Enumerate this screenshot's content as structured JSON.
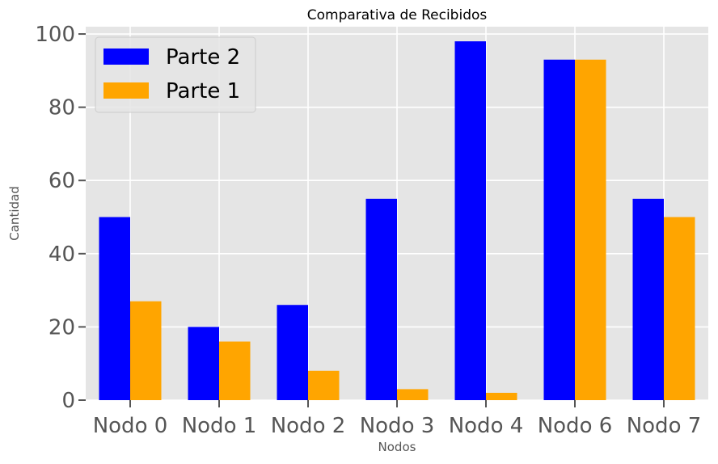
{
  "chart_data": {
    "type": "bar",
    "title": "Comparativa de Recibidos",
    "xlabel": "Nodos",
    "ylabel": "Cantidad",
    "categories": [
      "Nodo 0",
      "Nodo 1",
      "Nodo 2",
      "Nodo 3",
      "Nodo 4",
      "Nodo 6",
      "Nodo 7"
    ],
    "series": [
      {
        "name": "Parte 2",
        "color": "#0000ff",
        "values": [
          50,
          20,
          26,
          55,
          98,
          93,
          55
        ]
      },
      {
        "name": "Parte 1",
        "color": "#ffa500",
        "values": [
          27,
          16,
          8,
          3,
          2,
          93,
          50
        ]
      }
    ],
    "ylim": [
      0,
      102
    ],
    "yticks": [
      0,
      20,
      40,
      60,
      80,
      100
    ],
    "grid": true,
    "legend_position": "top-left",
    "background_color": "#e5e5e5",
    "grid_color": "#ffffff"
  }
}
